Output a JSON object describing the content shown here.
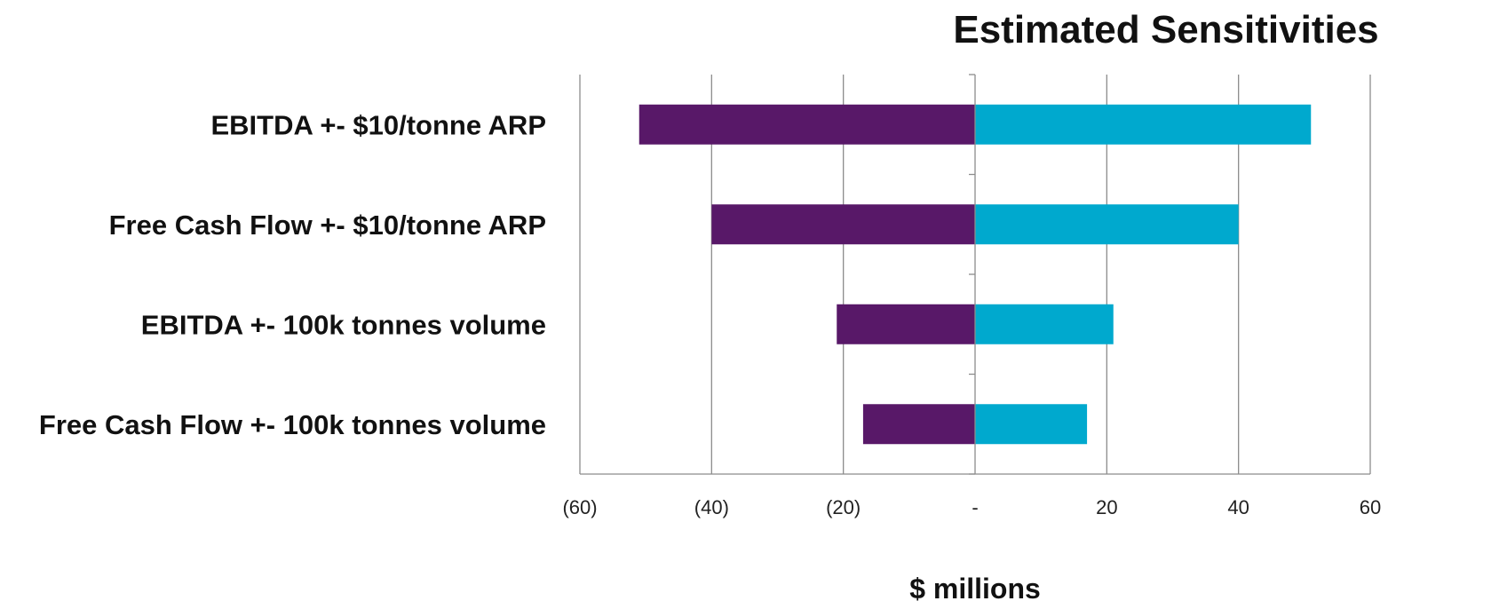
{
  "chart_data": {
    "type": "bar",
    "orientation": "horizontal",
    "stacked": true,
    "title": "Estimated Sensitivities",
    "xlabel": "$ millions",
    "ylabel": "",
    "categories": [
      "EBITDA +- $10/tonne ARP",
      "Free Cash Flow +- $10/tonne ARP",
      "EBITDA +- 100k tonnes volume",
      "Free Cash Flow +- 100k tonnes volume"
    ],
    "series": [
      {
        "color": "#581868",
        "values": [
          -51,
          -40,
          -21,
          -17
        ]
      },
      {
        "color": "#00A9CE",
        "values": [
          51,
          40,
          21,
          17
        ]
      }
    ],
    "xlim": [
      -60,
      60
    ],
    "xticks": [
      -60,
      -40,
      -20,
      0,
      20,
      40,
      60
    ],
    "xtick_labels": [
      "(60)",
      "(40)",
      "(20)",
      "-",
      "20",
      "40",
      "60"
    ],
    "grid": "vertical",
    "legend": "none"
  }
}
